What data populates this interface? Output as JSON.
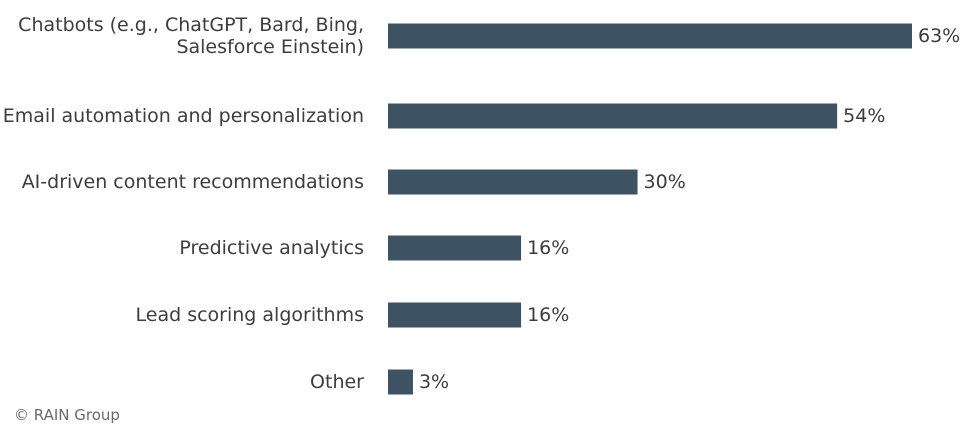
{
  "chart_data": {
    "type": "bar",
    "orientation": "horizontal",
    "categories": [
      [
        "Chatbots (e.g., ChatGPT, Bard, Bing,",
        "Salesforce Einstein)"
      ],
      [
        "Email automation and personalization"
      ],
      [
        "AI-driven content recommendations"
      ],
      [
        "Predictive analytics"
      ],
      [
        "Lead scoring algorithms"
      ],
      [
        "Other"
      ]
    ],
    "values": [
      63,
      54,
      30,
      16,
      16,
      3
    ],
    "value_labels": [
      "63%",
      "54%",
      "30%",
      "16%",
      "16%",
      "3%"
    ],
    "unit": "%",
    "xlim": [
      0,
      63
    ],
    "grid": false,
    "bar_color": "#3d5263"
  },
  "footer": {
    "copyright": "© RAIN Group"
  }
}
